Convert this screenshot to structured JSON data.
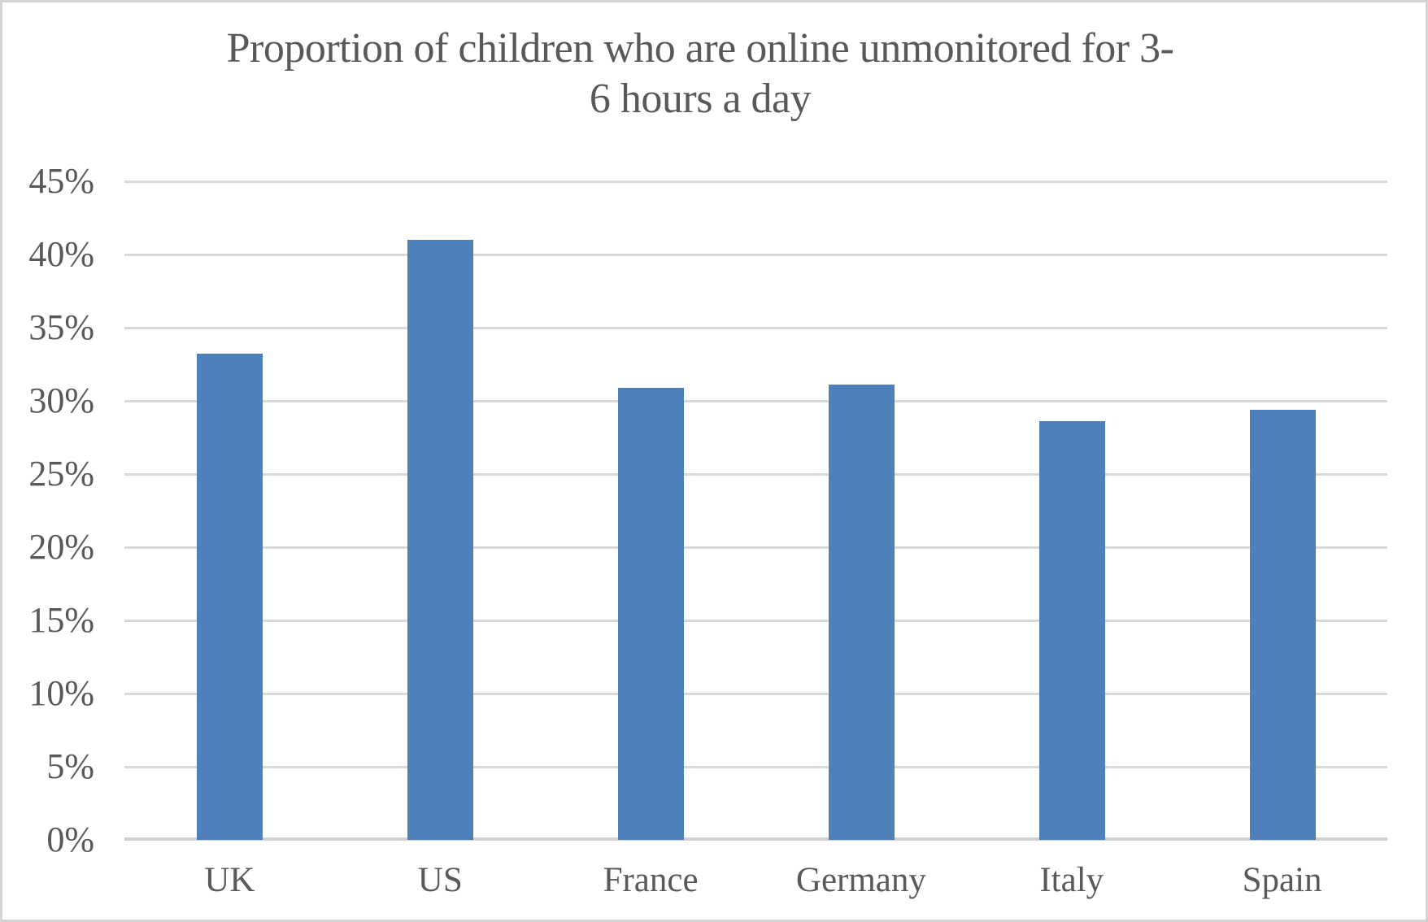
{
  "title": {
    "lines": [
      "Proportion of children who are online unmonitored for 3-",
      "6 hours a day"
    ]
  },
  "chart_data": {
    "type": "bar",
    "title": "Proportion of children who are online unmonitored for 3-6 hours a day",
    "categories": [
      "UK",
      "US",
      "France",
      "Germany",
      "Italy",
      "Spain"
    ],
    "values": [
      33.2,
      41.0,
      30.9,
      31.1,
      28.6,
      29.4
    ],
    "value_unit": "%",
    "xlabel": "",
    "ylabel": "",
    "ylim": [
      0,
      45
    ],
    "y_tick_step": 5,
    "y_tick_labels": [
      "0%",
      "5%",
      "10%",
      "15%",
      "20%",
      "25%",
      "30%",
      "35%",
      "40%",
      "45%"
    ],
    "grid": true,
    "legend": false,
    "colors": {
      "bar": "#4E80BC",
      "gridline": "#D9D9D9",
      "axis_line": "#D0D0D0",
      "text": "#595959",
      "background": "#FFFFFF",
      "frame_border": "#D3D3D3"
    }
  }
}
